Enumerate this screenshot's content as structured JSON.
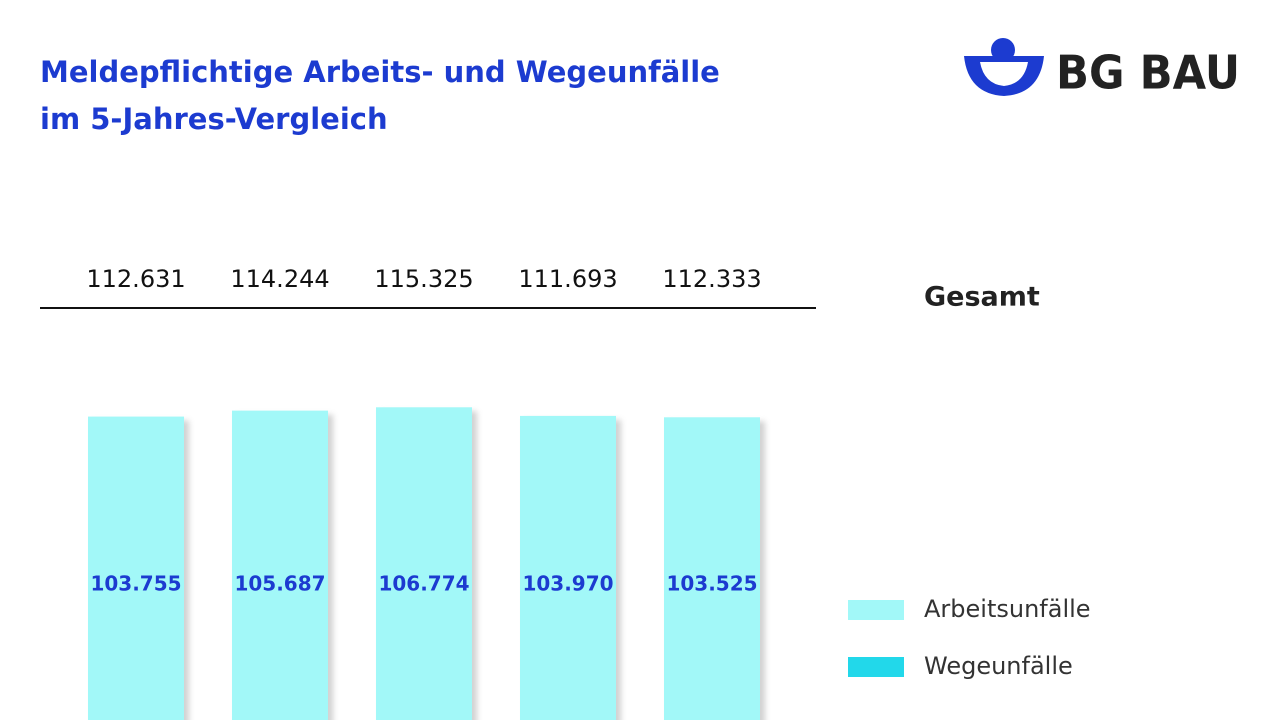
{
  "logo": "BG BAU",
  "chart_data": {
    "type": "bar",
    "title": [
      "Meldepflichtige Arbeits- und Wegeunfälle",
      "im 5-Jahres-Vergleich"
    ],
    "total_title": "Gesamt",
    "totals": [
      112631,
      114244,
      115325,
      111693,
      112333
    ],
    "total_labels": [
      "112.631",
      "114.244",
      "115.325",
      "111.693",
      "112.333"
    ],
    "series": [
      {
        "name": "Arbeitsunfälle",
        "color": "#a2f8f8",
        "values": [
          103755,
          105687,
          106774,
          103970,
          103525
        ],
        "value_labels": [
          "103.755",
          "105.687",
          "106.774",
          "103.970",
          "103.525"
        ]
      },
      {
        "name": "Wegeunfälle",
        "color": "#22d8ea",
        "values": [
          null,
          null,
          null,
          null,
          null
        ]
      }
    ],
    "ylim": [
      0,
      140000
    ]
  }
}
